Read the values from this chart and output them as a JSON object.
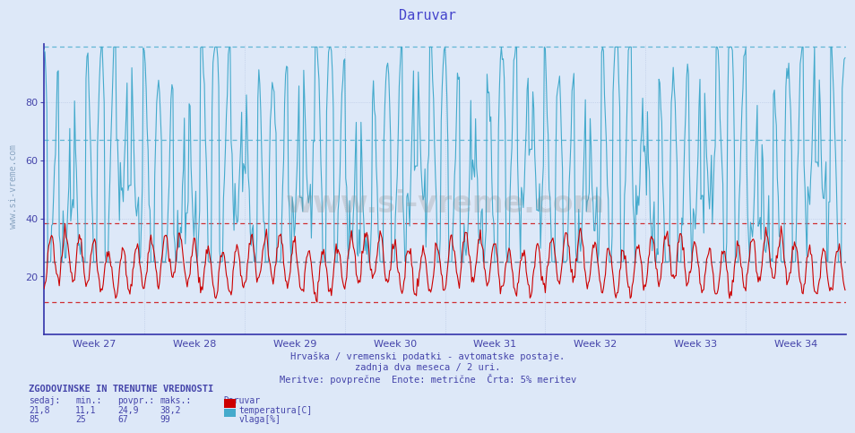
{
  "title": "Daruvar",
  "title_color": "#4444cc",
  "bg_color": "#dde8f8",
  "plot_bg_color": "#dde8f8",
  "x_label": "",
  "y_label": "",
  "ylim": [
    0,
    100
  ],
  "yticks": [
    20,
    40,
    60,
    80
  ],
  "week_labels": [
    "Week 27",
    "Week 28",
    "Week 29",
    "Week 30",
    "Week 31",
    "Week 32",
    "Week 33",
    "Week 34"
  ],
  "temp_color": "#cc0000",
  "vlaga_color": "#44aacc",
  "temp_min": 11.1,
  "temp_max": 38.2,
  "temp_avg": 24.9,
  "temp_curr": 21.8,
  "vlaga_min": 25,
  "vlaga_max": 99,
  "vlaga_avg": 67,
  "vlaga_curr": 85,
  "subtitle1": "Hrvaška / vremenski podatki - avtomatske postaje.",
  "subtitle2": "zadnja dva meseca / 2 uri.",
  "subtitle3": "Meritve: povprečne  Enote: metrične  Črta: 5% meritev",
  "legend_title": "ZGODOVINSKE IN TRENUTNE VREDNOSTI",
  "col_headers": [
    "sedaj:",
    "min.:",
    "povpr.:",
    "maks.:",
    "Daruvar"
  ],
  "num_points": 840,
  "num_weeks": 8
}
